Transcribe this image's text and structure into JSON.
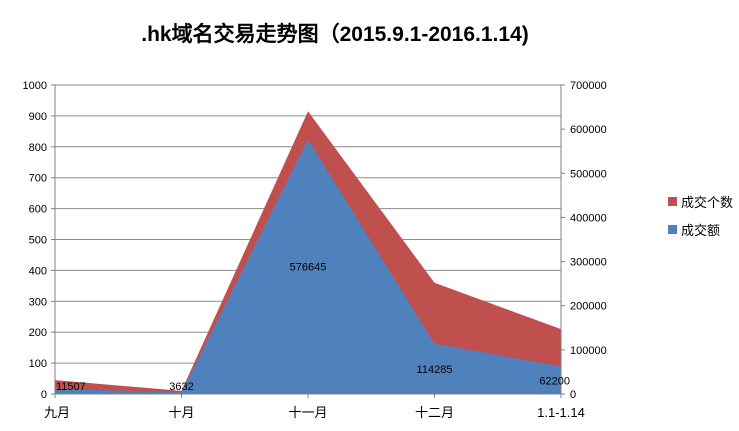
{
  "title": ".hk域名交易走势图（2015.9.1-2016.1.14)",
  "legend": {
    "items": [
      {
        "label": "成交个数",
        "color": "#C0504D"
      },
      {
        "label": "成交额",
        "color": "#4F81BD"
      }
    ]
  },
  "chart_data": {
    "type": "area",
    "title": ".hk域名交易走势图（2015.9.1-2016.1.14)",
    "categories": [
      "九月",
      "十月",
      "十一月",
      "十二月",
      "1.1-1.14"
    ],
    "series": [
      {
        "name": "成交个数",
        "axis": "left",
        "color": "#C0504D",
        "values": [
          45,
          10,
          915,
          360,
          210
        ]
      },
      {
        "name": "成交额",
        "axis": "right",
        "color": "#4F81BD",
        "values": [
          11507,
          3632,
          576645,
          114285,
          62200
        ],
        "data_labels": [
          "11507",
          "3632",
          "576645",
          "114285",
          "62200"
        ]
      }
    ],
    "left_axis": {
      "min": 0,
      "max": 1000,
      "step": 100,
      "ticks": [
        "0",
        "100",
        "200",
        "300",
        "400",
        "500",
        "600",
        "700",
        "800",
        "900",
        "1000"
      ]
    },
    "right_axis": {
      "min": 0,
      "max": 700000,
      "step": 100000,
      "ticks": [
        "0",
        "100000",
        "200000",
        "300000",
        "400000",
        "500000",
        "600000",
        "700000"
      ]
    },
    "grid": true,
    "legend_position": "right",
    "grid_color": "#8C8C8C",
    "axis_color": "#808080"
  }
}
